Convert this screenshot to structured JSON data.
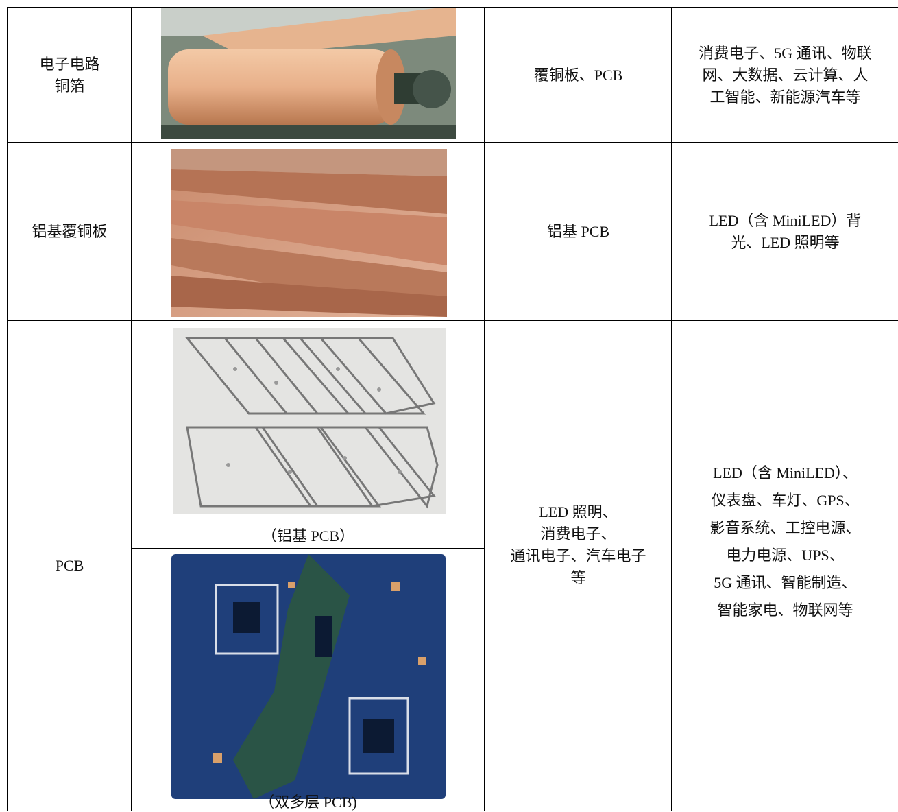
{
  "table": {
    "rows": [
      {
        "product": [
          "电子电路",
          "铜箔"
        ],
        "downstream": [
          "覆铜板、PCB"
        ],
        "applications": [
          "消费电子、5G 通讯、物联",
          "网、大数据、云计算、人",
          "工智能、新能源汽车等"
        ]
      },
      {
        "product": [
          "铝基覆铜板"
        ],
        "downstream": [
          "铝基 PCB"
        ],
        "applications": [
          "LED（含 MiniLED）背",
          "光、LED 照明等"
        ]
      },
      {
        "product": [
          "PCB"
        ],
        "image_captions": [
          "（铝基 PCB）",
          "（双多层 PCB)"
        ],
        "downstream": [
          "LED 照明、",
          "消费电子、",
          "通讯电子、汽车电子",
          "等"
        ],
        "applications": [
          "LED（含 MiniLED）、",
          "仪表盘、车灯、GPS、",
          "影音系统、工控电源、",
          "电力电源、UPS、",
          "5G 通讯、智能制造、",
          "智能家电、物联网等"
        ]
      }
    ]
  }
}
